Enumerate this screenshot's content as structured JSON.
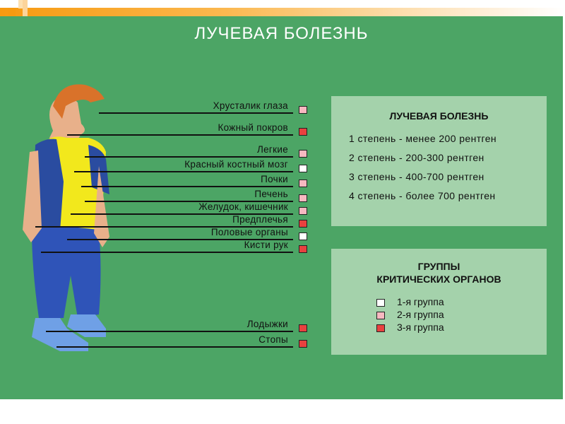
{
  "title": "ЛУЧЕВАЯ БОЛЕЗНЬ",
  "colors": {
    "background": "#4ca565",
    "panel": "#a4d2ab",
    "group1": "#ffffff",
    "group2": "#f7b8c0",
    "group3": "#e8413f"
  },
  "organs": [
    {
      "label": "Хрусталик глаза",
      "group": 2
    },
    {
      "label": "Кожный покров",
      "group": 3
    },
    {
      "label": "Легкие",
      "group": 2
    },
    {
      "label": "Красный костный мозг",
      "group": 1
    },
    {
      "label": "Почки",
      "group": 2
    },
    {
      "label": "Печень",
      "group": 2
    },
    {
      "label": "Желудок, кишечник",
      "group": 2
    },
    {
      "label": "Предплечья",
      "group": 3
    },
    {
      "label": "Половые органы",
      "group": 1
    },
    {
      "label": "Кисти рук",
      "group": 3
    },
    {
      "label": "Лодыжки",
      "group": 3
    },
    {
      "label": "Стопы",
      "group": 3
    }
  ],
  "disease_panel": {
    "title": "ЛУЧЕВАЯ БОЛЕЗНЬ",
    "items": [
      "1 степень - менее 200 рентген",
      "2 степень - 200-300 рентген",
      "3 степень - 400-700 рентген",
      "4 степень - более 700 рентген"
    ]
  },
  "groups_panel": {
    "title_line1": "ГРУППЫ",
    "title_line2": "КРИТИЧЕСКИХ ОРГАНОВ",
    "items": [
      "1-я группа",
      "2-я группа",
      "3-я группа"
    ]
  }
}
